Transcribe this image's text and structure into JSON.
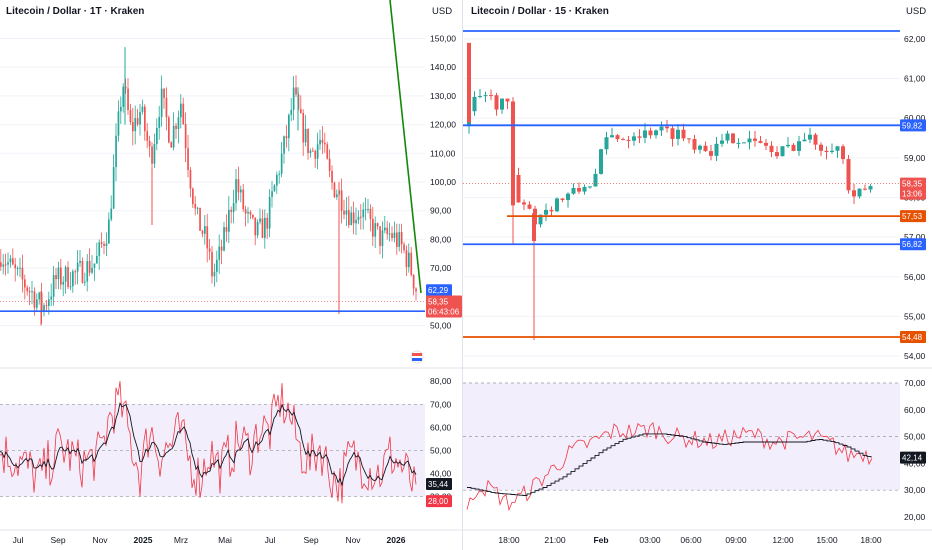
{
  "left": {
    "title": "Litecoin / Dollar · 1T · Kraken",
    "currency": "USD",
    "price_ticks": [
      "150,00",
      "140,00",
      "130,00",
      "120,00",
      "110,00",
      "100,00",
      "90,00",
      "80,00",
      "70,00",
      "60,00",
      "50,00"
    ],
    "price_values": [
      150,
      140,
      130,
      120,
      110,
      100,
      90,
      80,
      70,
      60,
      50
    ],
    "price_range": [
      46,
      154
    ],
    "time_labels": [
      "Jul",
      "Sep",
      "Nov",
      "2025",
      "Mrz",
      "Mai",
      "Jul",
      "Sep",
      "Nov",
      "2026"
    ],
    "badges": {
      "blue": "62,29",
      "price": "58,35",
      "countdown": "06:43:06"
    },
    "hline_price": 55.0,
    "rsi_ticks": [
      "80,00",
      "70,00",
      "60,00",
      "50,00",
      "40,00",
      "30,00"
    ],
    "rsi_badges": {
      "black": "35,44",
      "red": "28,00"
    },
    "rsi_band": [
      30,
      70
    ]
  },
  "right": {
    "title": "Litecoin / Dollar · 15 · Kraken",
    "currency": "USD",
    "price_ticks": [
      "62,00",
      "61,00",
      "60,00",
      "59,00",
      "58,00",
      "57,00",
      "56,00",
      "55,00",
      "54,00"
    ],
    "price_values": [
      62,
      61,
      60,
      59,
      58,
      57,
      56,
      55,
      54
    ],
    "price_range": [
      53.9,
      62.3
    ],
    "time_labels": [
      "18:00",
      "21:00",
      "Feb",
      "03:00",
      "06:00",
      "09:00",
      "12:00",
      "15:00",
      "18:00"
    ],
    "levels": [
      {
        "value": 62.2,
        "color": "#2962ff",
        "label": ""
      },
      {
        "value": 59.82,
        "color": "#2962ff",
        "label": "59,82"
      },
      {
        "value": 57.53,
        "color": "#e65100",
        "label": "57,53"
      },
      {
        "value": 56.82,
        "color": "#2962ff",
        "label": "56,82"
      },
      {
        "value": 54.48,
        "color": "#e65100",
        "label": "54,48"
      }
    ],
    "price_badge": {
      "price": "58,35",
      "countdown": "13:06"
    },
    "rsi_ticks": [
      "70,00",
      "60,00",
      "50,00",
      "40,00",
      "30,00",
      "20,00"
    ],
    "rsi_badge": "42,14",
    "rsi_band": [
      30,
      70
    ]
  },
  "colors": {
    "up": "#26a69a",
    "down": "#ef5350",
    "rsi": "#f23645",
    "blue": "#2962ff",
    "orange": "#e65100",
    "trend": "#138808"
  }
}
